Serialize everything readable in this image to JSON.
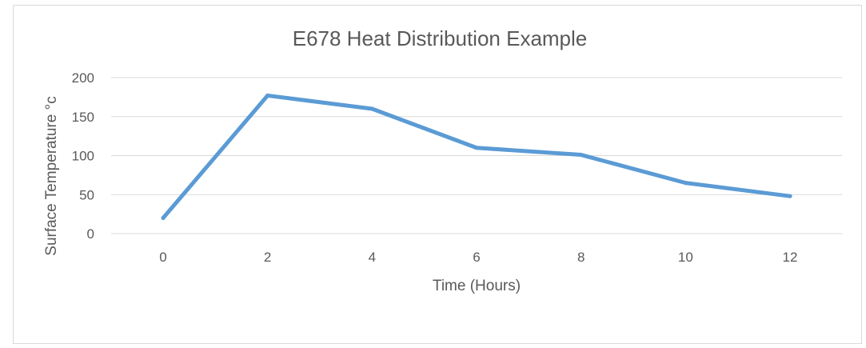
{
  "chart_data": {
    "type": "line",
    "title": "E678 Heat Distribution Example",
    "xlabel": "Time (Hours)",
    "ylabel": "Surface Temperature °c",
    "x": [
      0,
      2,
      4,
      6,
      8,
      10,
      12
    ],
    "series": [
      {
        "values": [
          20,
          177,
          160,
          110,
          101,
          65,
          48
        ],
        "color": "#5b9bd5"
      }
    ],
    "xticks": [
      "0",
      "2",
      "4",
      "6",
      "8",
      "10",
      "12"
    ],
    "yticks": [
      "0",
      "50",
      "100",
      "150",
      "200"
    ],
    "ylim": [
      0,
      200
    ],
    "grid": true,
    "legend": "none"
  }
}
